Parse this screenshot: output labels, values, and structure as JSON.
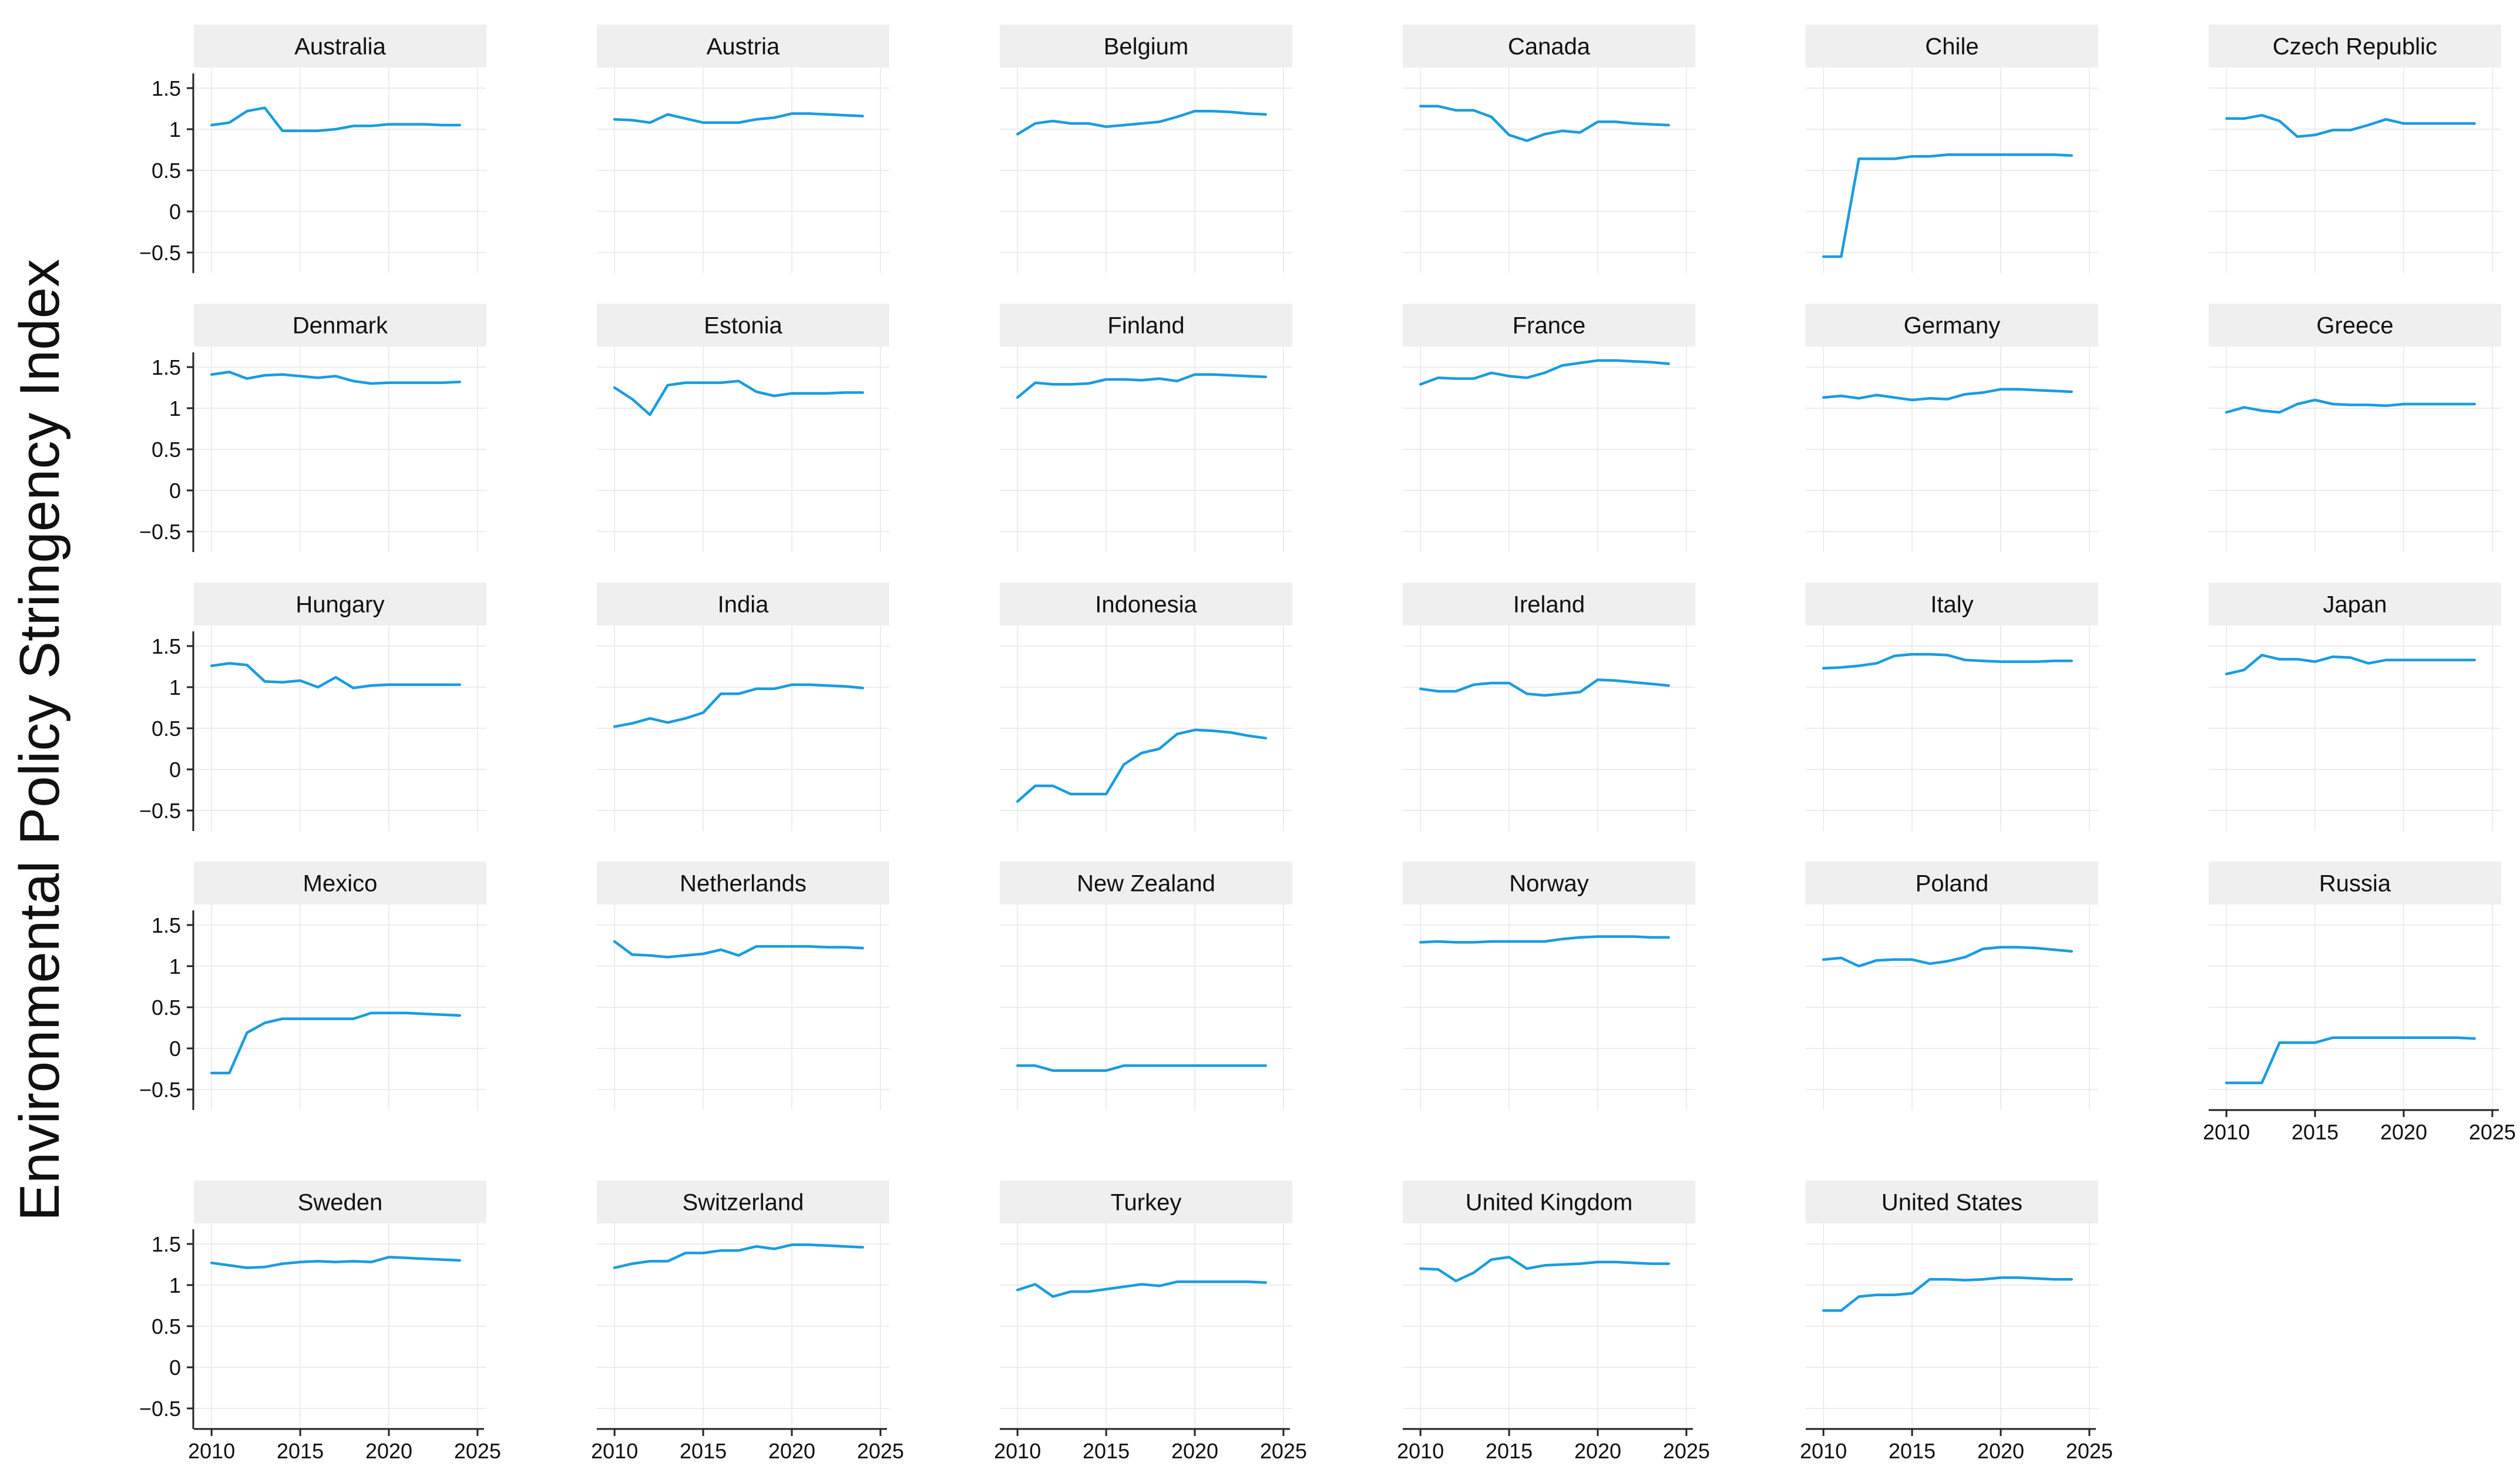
{
  "figure": {
    "ylabel": "Environmental Policy Stringency Index"
  },
  "style": {
    "line_color": "#1a9ce0",
    "strip_color": "#efefef",
    "grid_color": "#ececec",
    "axis_color": "#222222",
    "text_color": "#111111"
  },
  "chart_data": {
    "type": "line",
    "layout": "facet-grid",
    "ylabel": "Environmental Policy Stringency Index",
    "xlabel": "",
    "x": [
      2010,
      2011,
      2012,
      2013,
      2014,
      2015,
      2016,
      2017,
      2018,
      2019,
      2020,
      2021,
      2022,
      2023,
      2024
    ],
    "xlim": [
      2009,
      2025.5
    ],
    "ylim": [
      -0.75,
      1.75
    ],
    "xticks": [
      2010,
      2015,
      2020,
      2025
    ],
    "yticks": [
      -0.5,
      0,
      0.5,
      1,
      1.5
    ],
    "xtick_labels": [
      "2010",
      "2015",
      "2020",
      "2025"
    ],
    "ytick_labels": [
      "−0.5",
      "0",
      "0.5",
      "1",
      "1.5"
    ],
    "grid": true,
    "panels": [
      {
        "name": "Australia",
        "values": [
          1.05,
          1.08,
          1.22,
          1.26,
          0.98,
          0.98,
          0.98,
          1.0,
          1.04,
          1.04,
          1.06,
          1.06,
          1.06,
          1.05,
          1.05
        ]
      },
      {
        "name": "Austria",
        "values": [
          1.12,
          1.11,
          1.08,
          1.18,
          1.13,
          1.08,
          1.08,
          1.08,
          1.12,
          1.14,
          1.19,
          1.19,
          1.18,
          1.17,
          1.16
        ]
      },
      {
        "name": "Belgium",
        "values": [
          0.94,
          1.07,
          1.1,
          1.07,
          1.07,
          1.03,
          1.05,
          1.07,
          1.09,
          1.15,
          1.22,
          1.22,
          1.21,
          1.19,
          1.18
        ]
      },
      {
        "name": "Canada",
        "values": [
          1.28,
          1.28,
          1.23,
          1.23,
          1.15,
          0.93,
          0.86,
          0.94,
          0.98,
          0.96,
          1.09,
          1.09,
          1.07,
          1.06,
          1.05
        ]
      },
      {
        "name": "Chile",
        "values": [
          -0.55,
          -0.55,
          0.64,
          0.64,
          0.64,
          0.67,
          0.67,
          0.69,
          0.69,
          0.69,
          0.69,
          0.69,
          0.69,
          0.69,
          0.68
        ]
      },
      {
        "name": "Czech Republic",
        "values": [
          1.13,
          1.13,
          1.17,
          1.1,
          0.91,
          0.93,
          0.99,
          0.99,
          1.05,
          1.12,
          1.07,
          1.07,
          1.07,
          1.07,
          1.07
        ]
      },
      {
        "name": "Denmark",
        "values": [
          1.41,
          1.44,
          1.36,
          1.4,
          1.41,
          1.39,
          1.37,
          1.39,
          1.33,
          1.3,
          1.31,
          1.31,
          1.31,
          1.31,
          1.32
        ]
      },
      {
        "name": "Estonia",
        "values": [
          1.25,
          1.11,
          0.92,
          1.28,
          1.31,
          1.31,
          1.31,
          1.33,
          1.2,
          1.15,
          1.18,
          1.18,
          1.18,
          1.19,
          1.19
        ]
      },
      {
        "name": "Finland",
        "values": [
          1.13,
          1.31,
          1.29,
          1.29,
          1.3,
          1.35,
          1.35,
          1.34,
          1.36,
          1.33,
          1.41,
          1.41,
          1.4,
          1.39,
          1.38
        ]
      },
      {
        "name": "France",
        "values": [
          1.29,
          1.37,
          1.36,
          1.36,
          1.43,
          1.39,
          1.37,
          1.43,
          1.52,
          1.55,
          1.58,
          1.58,
          1.57,
          1.56,
          1.54
        ]
      },
      {
        "name": "Germany",
        "values": [
          1.13,
          1.15,
          1.12,
          1.16,
          1.13,
          1.1,
          1.12,
          1.11,
          1.17,
          1.19,
          1.23,
          1.23,
          1.22,
          1.21,
          1.2
        ]
      },
      {
        "name": "Greece",
        "values": [
          0.95,
          1.01,
          0.97,
          0.95,
          1.05,
          1.1,
          1.05,
          1.04,
          1.04,
          1.03,
          1.05,
          1.05,
          1.05,
          1.05,
          1.05
        ]
      },
      {
        "name": "Hungary",
        "values": [
          1.26,
          1.29,
          1.27,
          1.07,
          1.06,
          1.08,
          1.0,
          1.12,
          0.99,
          1.02,
          1.03,
          1.03,
          1.03,
          1.03,
          1.03
        ]
      },
      {
        "name": "India",
        "values": [
          0.52,
          0.56,
          0.62,
          0.57,
          0.62,
          0.69,
          0.92,
          0.92,
          0.98,
          0.98,
          1.03,
          1.03,
          1.02,
          1.01,
          0.99
        ]
      },
      {
        "name": "Indonesia",
        "values": [
          -0.39,
          -0.2,
          -0.2,
          -0.3,
          -0.3,
          -0.3,
          0.06,
          0.2,
          0.25,
          0.43,
          0.48,
          0.47,
          0.45,
          0.41,
          0.38
        ]
      },
      {
        "name": "Ireland",
        "values": [
          0.98,
          0.95,
          0.95,
          1.03,
          1.05,
          1.05,
          0.92,
          0.9,
          0.92,
          0.94,
          1.09,
          1.08,
          1.06,
          1.04,
          1.02
        ]
      },
      {
        "name": "Italy",
        "values": [
          1.23,
          1.24,
          1.26,
          1.29,
          1.38,
          1.4,
          1.4,
          1.39,
          1.33,
          1.32,
          1.31,
          1.31,
          1.31,
          1.32,
          1.32
        ]
      },
      {
        "name": "Japan",
        "values": [
          1.16,
          1.21,
          1.39,
          1.34,
          1.34,
          1.31,
          1.37,
          1.36,
          1.29,
          1.33,
          1.33,
          1.33,
          1.33,
          1.33,
          1.33
        ]
      },
      {
        "name": "Mexico",
        "values": [
          -0.3,
          -0.3,
          0.19,
          0.31,
          0.36,
          0.36,
          0.36,
          0.36,
          0.36,
          0.43,
          0.43,
          0.43,
          0.42,
          0.41,
          0.4
        ]
      },
      {
        "name": "Netherlands",
        "values": [
          1.3,
          1.14,
          1.13,
          1.11,
          1.13,
          1.15,
          1.2,
          1.13,
          1.24,
          1.24,
          1.24,
          1.24,
          1.23,
          1.23,
          1.22
        ]
      },
      {
        "name": "New Zealand",
        "values": [
          -0.21,
          -0.21,
          -0.27,
          -0.27,
          -0.27,
          -0.27,
          -0.21,
          -0.21,
          -0.21,
          -0.21,
          -0.21,
          -0.21,
          -0.21,
          -0.21,
          -0.21
        ]
      },
      {
        "name": "Norway",
        "values": [
          1.29,
          1.3,
          1.29,
          1.29,
          1.3,
          1.3,
          1.3,
          1.3,
          1.33,
          1.35,
          1.36,
          1.36,
          1.36,
          1.35,
          1.35
        ]
      },
      {
        "name": "Poland",
        "values": [
          1.08,
          1.1,
          1.0,
          1.07,
          1.08,
          1.08,
          1.03,
          1.06,
          1.11,
          1.21,
          1.23,
          1.23,
          1.22,
          1.2,
          1.18
        ]
      },
      {
        "name": "Russia",
        "values": [
          -0.42,
          -0.42,
          -0.42,
          0.07,
          0.07,
          0.07,
          0.13,
          0.13,
          0.13,
          0.13,
          0.13,
          0.13,
          0.13,
          0.13,
          0.12
        ]
      },
      {
        "name": "Sweden",
        "values": [
          1.27,
          1.24,
          1.21,
          1.22,
          1.26,
          1.28,
          1.29,
          1.28,
          1.29,
          1.28,
          1.34,
          1.33,
          1.32,
          1.31,
          1.3
        ]
      },
      {
        "name": "Switzerland",
        "values": [
          1.21,
          1.26,
          1.29,
          1.29,
          1.39,
          1.39,
          1.42,
          1.42,
          1.47,
          1.44,
          1.49,
          1.49,
          1.48,
          1.47,
          1.46
        ]
      },
      {
        "name": "Turkey",
        "values": [
          0.94,
          1.01,
          0.86,
          0.92,
          0.92,
          0.95,
          0.98,
          1.01,
          0.99,
          1.04,
          1.04,
          1.04,
          1.04,
          1.04,
          1.03
        ]
      },
      {
        "name": "United Kingdom",
        "values": [
          1.2,
          1.19,
          1.05,
          1.15,
          1.31,
          1.34,
          1.2,
          1.24,
          1.25,
          1.26,
          1.28,
          1.28,
          1.27,
          1.26,
          1.26
        ]
      },
      {
        "name": "United States",
        "values": [
          0.69,
          0.69,
          0.86,
          0.88,
          0.88,
          0.9,
          1.07,
          1.07,
          1.06,
          1.07,
          1.09,
          1.09,
          1.08,
          1.07,
          1.07
        ]
      }
    ]
  }
}
